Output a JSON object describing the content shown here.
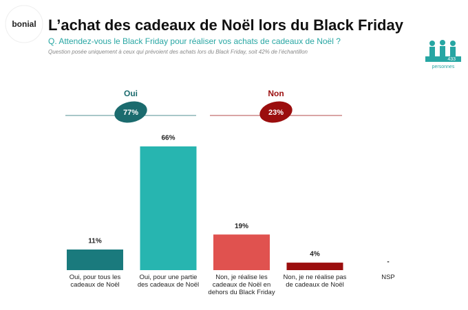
{
  "brand": "bonial",
  "panel_size": "433",
  "panel_unit": "personnes",
  "chart_data": {
    "type": "bar",
    "title": "L’achat des cadeaux de Noël lors du Black Friday",
    "subtitle": "Q. Attendez-vous le Black Friday pour réaliser vos achats de cadeaux de Noël ?",
    "note": "Question posée uniquement à ceux qui prévoient des achats lors du Black Friday, soit 42% de l’échantillon",
    "groups": [
      {
        "name": "Oui",
        "value": 77,
        "value_label": "77%",
        "color": "#1b6b6e"
      },
      {
        "name": "Non",
        "value": 23,
        "value_label": "23%",
        "color": "#9b0e0e"
      }
    ],
    "categories": [
      "Oui, pour tous les cadeaux de Noël",
      "Oui, pour une partie des cadeaux de Noël",
      "Non, je réalise les cadeaux de Noël en dehors du Black Friday",
      "Non, je ne réalise pas de cadeaux de Noël",
      "NSP"
    ],
    "values": [
      11,
      66,
      19,
      4,
      null
    ],
    "value_labels": [
      "11%",
      "66%",
      "19%",
      "4%",
      "-"
    ],
    "colors": [
      "#1a7a7d",
      "#27b5b0",
      "#e0524f",
      "#9b0e0e",
      "#999999"
    ]
  }
}
